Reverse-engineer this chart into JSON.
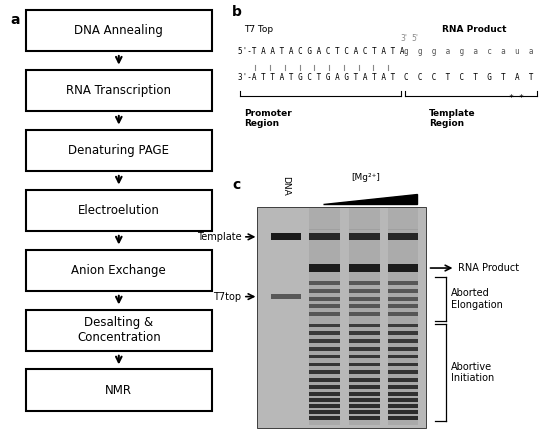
{
  "panel_a_boxes": [
    "DNA Annealing",
    "RNA Transcription",
    "Denaturing PAGE",
    "Electroelution",
    "Anion Exchange",
    "Desalting &\nConcentration",
    "NMR"
  ],
  "panel_b_t7top_label": "T7 Top",
  "panel_b_rna_product_label": "RNA Product",
  "panel_b_promoter_label": "Promoter\nRegion",
  "panel_b_template_label": "Template\nRegion",
  "panel_c_dna_label": "DNA",
  "panel_c_mg_label": "[Mg²⁺]",
  "panel_c_template_label": "Template",
  "panel_c_t7top_label": "T7top",
  "panel_c_rna_product_label": "RNA Product",
  "panel_c_aborted_label": "Aborted\nElongation",
  "panel_c_abortive_label": "Abortive\nInitiation",
  "bg_color": "#ffffff",
  "box_color": "#000000",
  "text_color": "#000000"
}
